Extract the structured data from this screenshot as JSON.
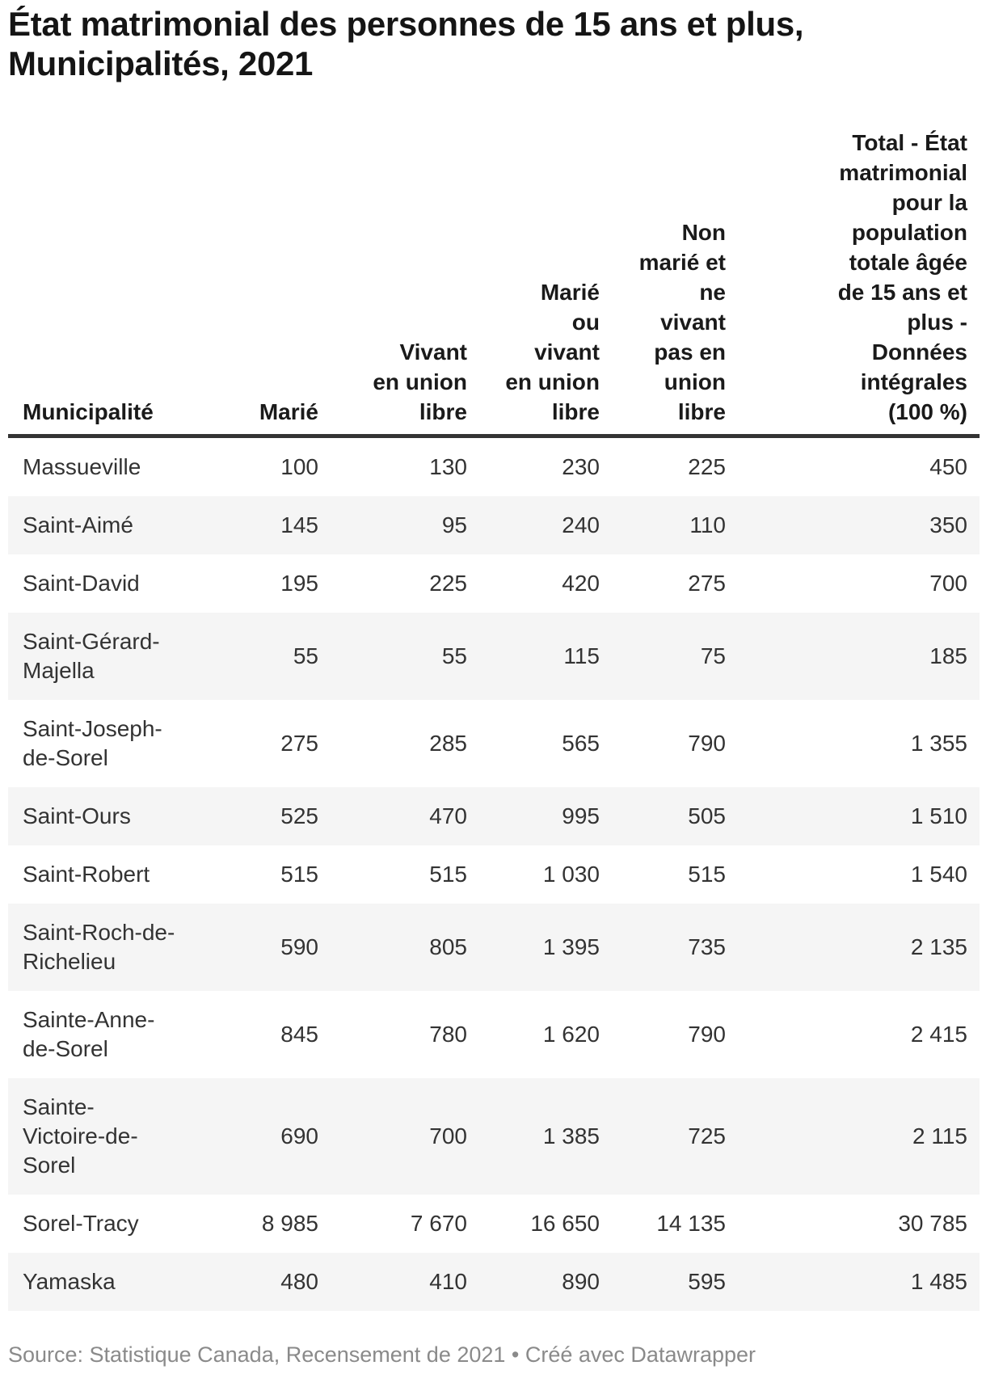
{
  "header": {
    "title": "État matrimonial des personnes de 15 ans et plus,\nMunicipalités, 2021"
  },
  "table": {
    "columns": [
      {
        "id": "municipalite",
        "label": "Municipalité",
        "align": "left"
      },
      {
        "id": "marie",
        "label": "Marié",
        "align": "right"
      },
      {
        "id": "vivant-union-libre",
        "label": "Vivant\nen union\nlibre",
        "align": "right"
      },
      {
        "id": "marie-ou-union-libre",
        "label": "Marié\nou\nvivant\nen union\nlibre",
        "align": "right"
      },
      {
        "id": "non-marie",
        "label": "Non\nmarié et\nne\nvivant\npas en\nunion\nlibre",
        "align": "right"
      },
      {
        "id": "total",
        "label": "Total - État\nmatrimonial\npour la\npopulation\ntotale âgée\nde 15 ans et\nplus -\nDonnées\nintégrales\n(100 %)",
        "align": "right"
      }
    ],
    "rows": [
      {
        "name": "Massueville",
        "values": [
          "100",
          "130",
          "230",
          "225",
          "450"
        ]
      },
      {
        "name": "Saint-Aimé",
        "values": [
          "145",
          "95",
          "240",
          "110",
          "350"
        ]
      },
      {
        "name": "Saint-David",
        "values": [
          "195",
          "225",
          "420",
          "275",
          "700"
        ]
      },
      {
        "name": "Saint-Gérard-\nMajella",
        "values": [
          "55",
          "55",
          "115",
          "75",
          "185"
        ]
      },
      {
        "name": "Saint-Joseph-\nde-Sorel",
        "values": [
          "275",
          "285",
          "565",
          "790",
          "1 355"
        ]
      },
      {
        "name": "Saint-Ours",
        "values": [
          "525",
          "470",
          "995",
          "505",
          "1 510"
        ]
      },
      {
        "name": "Saint-Robert",
        "values": [
          "515",
          "515",
          "1 030",
          "515",
          "1 540"
        ]
      },
      {
        "name": "Saint-Roch-de-\nRichelieu",
        "values": [
          "590",
          "805",
          "1 395",
          "735",
          "2 135"
        ]
      },
      {
        "name": "Sainte-Anne-\nde-Sorel",
        "values": [
          "845",
          "780",
          "1 620",
          "790",
          "2 415"
        ]
      },
      {
        "name": "Sainte-\nVictoire-de-\nSorel",
        "values": [
          "690",
          "700",
          "1 385",
          "725",
          "2 115"
        ]
      },
      {
        "name": "Sorel-Tracy",
        "values": [
          "8 985",
          "7 670",
          "16 650",
          "14 135",
          "30 785"
        ]
      },
      {
        "name": "Yamaska",
        "values": [
          "480",
          "410",
          "890",
          "595",
          "1 485"
        ]
      }
    ]
  },
  "footer": {
    "source": "Source: Statistique Canada, Recensement de 2021",
    "separator": " • ",
    "credit": "Créé avec Datawrapper"
  },
  "chart_data": {
    "type": "table",
    "title": "État matrimonial des personnes de 15 ans et plus, Municipalités, 2021",
    "columns": [
      "Municipalité",
      "Marié",
      "Vivant en union libre",
      "Marié ou vivant en union libre",
      "Non marié et ne vivant pas en union libre",
      "Total - État matrimonial pour la population totale âgée de 15 ans et plus - Données intégrales (100 %)"
    ],
    "rows": [
      [
        "Massueville",
        100,
        130,
        230,
        225,
        450
      ],
      [
        "Saint-Aimé",
        145,
        95,
        240,
        110,
        350
      ],
      [
        "Saint-David",
        195,
        225,
        420,
        275,
        700
      ],
      [
        "Saint-Gérard-Majella",
        55,
        55,
        115,
        75,
        185
      ],
      [
        "Saint-Joseph-de-Sorel",
        275,
        285,
        565,
        790,
        1355
      ],
      [
        "Saint-Ours",
        525,
        470,
        995,
        505,
        1510
      ],
      [
        "Saint-Robert",
        515,
        515,
        1030,
        515,
        1540
      ],
      [
        "Saint-Roch-de-Richelieu",
        590,
        805,
        1395,
        735,
        2135
      ],
      [
        "Sainte-Anne-de-Sorel",
        845,
        780,
        1620,
        790,
        2415
      ],
      [
        "Sainte-Victoire-de-Sorel",
        690,
        700,
        1385,
        725,
        2115
      ],
      [
        "Sorel-Tracy",
        8985,
        7670,
        16650,
        14135,
        30785
      ],
      [
        "Yamaska",
        480,
        410,
        890,
        595,
        1485
      ]
    ],
    "source": "Statistique Canada, Recensement de 2021",
    "layout_hints": {
      "striped_rows": true,
      "stripe_color": "#f5f5f5",
      "header_rule_color": "#333333",
      "numeric_alignment": "right",
      "thousands_separator": "space"
    }
  }
}
